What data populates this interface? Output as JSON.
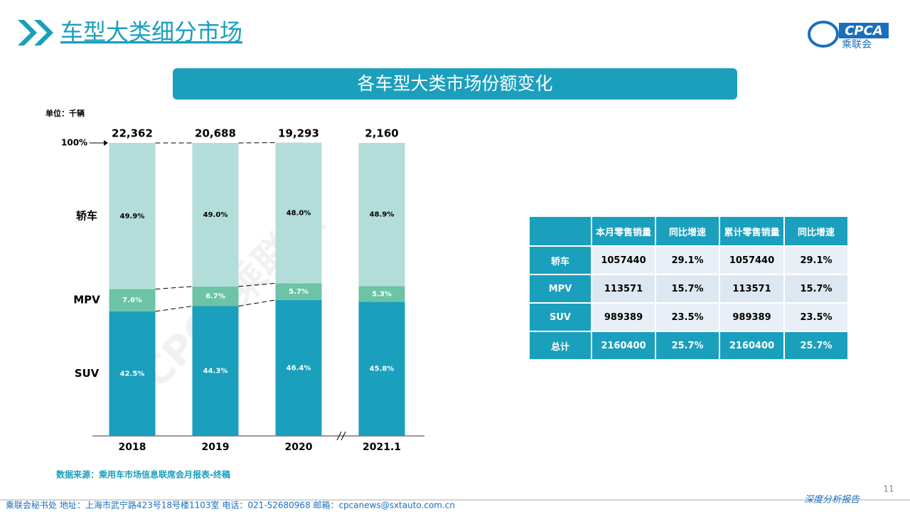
{
  "header": {
    "title": "车型大类细分市场",
    "banner": "各车型大类市场份额变化",
    "logo_text": "CPCA",
    "logo_name": "乘联会"
  },
  "chart_data": {
    "type": "stacked_bar",
    "unit": "单位：千辆",
    "categories": [
      "2018",
      "2019",
      "2020",
      "2021.1"
    ],
    "series": [
      {
        "name": "SUV",
        "color": "#1a9fbd",
        "values": [
          42.5,
          44.3,
          46.4,
          45.8
        ],
        "value_labels": [
          "42.5%",
          "44.3%",
          "46.4%",
          "45.8%"
        ]
      },
      {
        "name": "MPV",
        "color": "#6cc3a6",
        "values": [
          7.6,
          6.7,
          5.7,
          5.3
        ],
        "value_labels": [
          "7.6%",
          "6.7%",
          "5.7%",
          "5.3%"
        ]
      },
      {
        "name": "轿车",
        "color": "#b3ddd9",
        "values": [
          49.9,
          49.0,
          48.0,
          48.9
        ],
        "value_labels": [
          "49.9%",
          "49.0%",
          "48.0%",
          "48.9%"
        ]
      }
    ],
    "totals": [
      {
        "value": 22362,
        "label": "22,362"
      },
      {
        "value": 20688,
        "label": "20,688"
      },
      {
        "value": 19293,
        "label": "19,293"
      },
      {
        "value": 2160,
        "label": "2,160"
      }
    ],
    "ylim": [
      0,
      100
    ],
    "yticks": [
      {
        "value": 100,
        "label": "100%"
      }
    ]
  },
  "table": {
    "columns": [
      "本月零售销量",
      "同比增速",
      "累计零售销量",
      "同比增速"
    ],
    "rows": [
      {
        "label": "轿车",
        "cells": [
          "1057440",
          "29.1%",
          "1057440",
          "29.1%"
        ]
      },
      {
        "label": "MPV",
        "cells": [
          "113571",
          "15.7%",
          "113571",
          "15.7%"
        ]
      },
      {
        "label": "SUV",
        "cells": [
          "989389",
          "23.5%",
          "989389",
          "23.5%"
        ]
      },
      {
        "label": "总计",
        "cells": [
          "2160400",
          "25.7%",
          "2160400",
          "25.7%"
        ]
      }
    ]
  },
  "watermark": "CPCA乘联会",
  "source": "数据来源：乘用车市场信息联席会月报表-终稿",
  "footer": {
    "contact": "乘联会秘书处    地址：上海市武宁路423号18号楼1103室    电话：021-52680968    邮箱：cpcanews@sxtauto.com.cn",
    "report": "深度分析报告",
    "page": "11"
  }
}
